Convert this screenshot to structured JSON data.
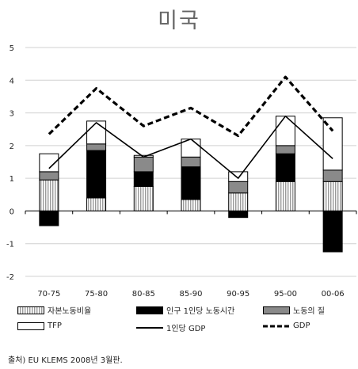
{
  "title": "미국",
  "source_note": "출처) EU KLEMS 2008년 3월판.",
  "colors": {
    "capital": "#e6e6e6",
    "hours": "#000000",
    "quality": "#8a8a8a",
    "tfp": "#ffffff",
    "line": "#000000",
    "grid": "#d0d0d0"
  },
  "legend": [
    {
      "name": "자본노동비율",
      "kind": "striped"
    },
    {
      "name": "인구 1인당 노동시간",
      "kind": "black"
    },
    {
      "name": "노동의 질",
      "kind": "gray"
    },
    {
      "name": "TFP",
      "kind": "white"
    },
    {
      "name": "1인당 GDP",
      "kind": "solid-line"
    },
    {
      "name": "GDP",
      "kind": "dashed-line"
    }
  ],
  "chart_data": {
    "type": "bar",
    "stacked": true,
    "categories": [
      "70-75",
      "75-80",
      "80-85",
      "85-90",
      "90-95",
      "95-00",
      "00-06"
    ],
    "ylim": [
      -2,
      5
    ],
    "yticks": [
      "-2",
      "-1",
      "0",
      "1",
      "2",
      "3",
      "4",
      "5"
    ],
    "grid": true,
    "series": [
      {
        "name": "자본노동비율",
        "values": [
          0.95,
          0.4,
          0.75,
          0.35,
          0.55,
          0.9,
          0.9
        ]
      },
      {
        "name": "인구 1인당 노동시간",
        "values": [
          -0.45,
          1.45,
          0.45,
          1.0,
          -0.2,
          0.85,
          -1.25
        ]
      },
      {
        "name": "노동의 질",
        "values": [
          0.25,
          0.2,
          0.45,
          0.3,
          0.35,
          0.25,
          0.35
        ]
      },
      {
        "name": "TFP",
        "values": [
          0.55,
          0.7,
          0.05,
          0.55,
          0.3,
          0.9,
          1.6
        ]
      }
    ],
    "lines": [
      {
        "name": "1인당 GDP",
        "values": [
          1.3,
          2.7,
          1.65,
          2.2,
          1.0,
          2.9,
          1.6
        ],
        "style": "solid"
      },
      {
        "name": "GDP",
        "values": [
          2.35,
          3.75,
          2.6,
          3.15,
          2.3,
          4.1,
          2.45
        ],
        "style": "dashed"
      }
    ]
  }
}
